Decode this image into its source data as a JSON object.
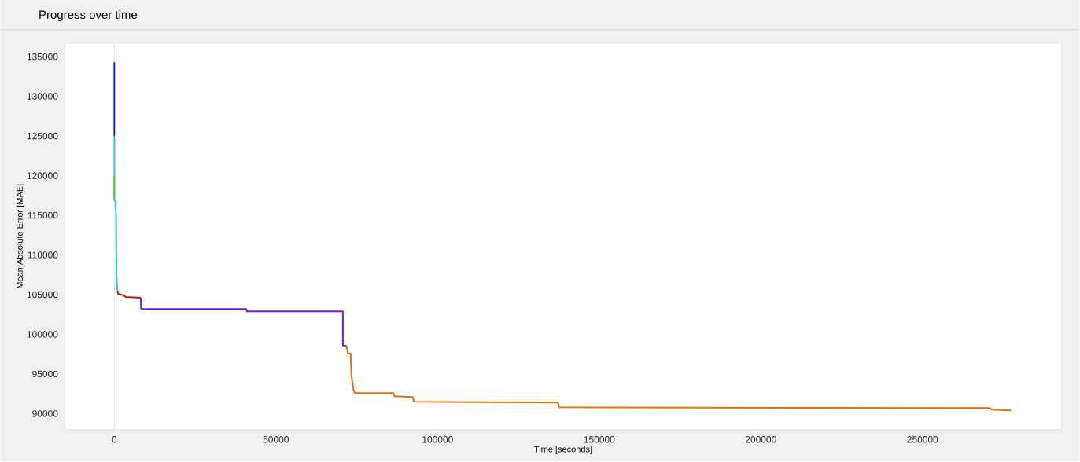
{
  "chart_data": {
    "type": "line",
    "title": "Progress over time",
    "xlabel": "Time [seconds]",
    "ylabel": "Mean Absolute Error [MAE]",
    "xlim": [
      -15300,
      293000
    ],
    "ylim": [
      88000,
      136700
    ],
    "xticks": [
      0,
      50000,
      100000,
      150000,
      200000,
      250000
    ],
    "yticks": [
      90000,
      95000,
      100000,
      105000,
      110000,
      115000,
      120000,
      125000,
      130000,
      135000
    ],
    "ref_lines": [
      {
        "axis": "x",
        "value": 0,
        "color": "#d8d8d8"
      }
    ],
    "series": [
      {
        "color": "#2222c8",
        "x": [
          0,
          0
        ],
        "values": [
          134300,
          125000
        ]
      },
      {
        "color": "#33c8c8",
        "x": [
          0,
          0
        ],
        "values": [
          125000,
          120000
        ]
      },
      {
        "color": "#22c822",
        "x": [
          0,
          0
        ],
        "values": [
          120000,
          117000
        ]
      },
      {
        "color": "#33c8c8",
        "x": [
          0,
          300,
          500,
          700,
          1000
        ],
        "values": [
          117000,
          116800,
          115500,
          107000,
          105500
        ]
      },
      {
        "color": "#b81818",
        "x": [
          1000,
          1200,
          3000,
          3500,
          8200
        ],
        "values": [
          105500,
          105100,
          104900,
          104700,
          104600
        ]
      },
      {
        "color": "#6a1ed0",
        "x": [
          8200,
          8300,
          40800,
          41000,
          70700,
          70700,
          71900
        ],
        "values": [
          104600,
          103200,
          103200,
          102900,
          102900,
          98600,
          98500
        ]
      },
      {
        "color": "#d87418",
        "x": [
          71900,
          72200,
          73100,
          73300,
          74000,
          74400,
          86400,
          86600,
          92300,
          92700,
          137300,
          137500,
          271000,
          271500,
          277400
        ],
        "values": [
          98500,
          97600,
          97600,
          95000,
          93000,
          92600,
          92600,
          92200,
          92100,
          91500,
          91400,
          90800,
          90700,
          90500,
          90400
        ]
      }
    ]
  }
}
